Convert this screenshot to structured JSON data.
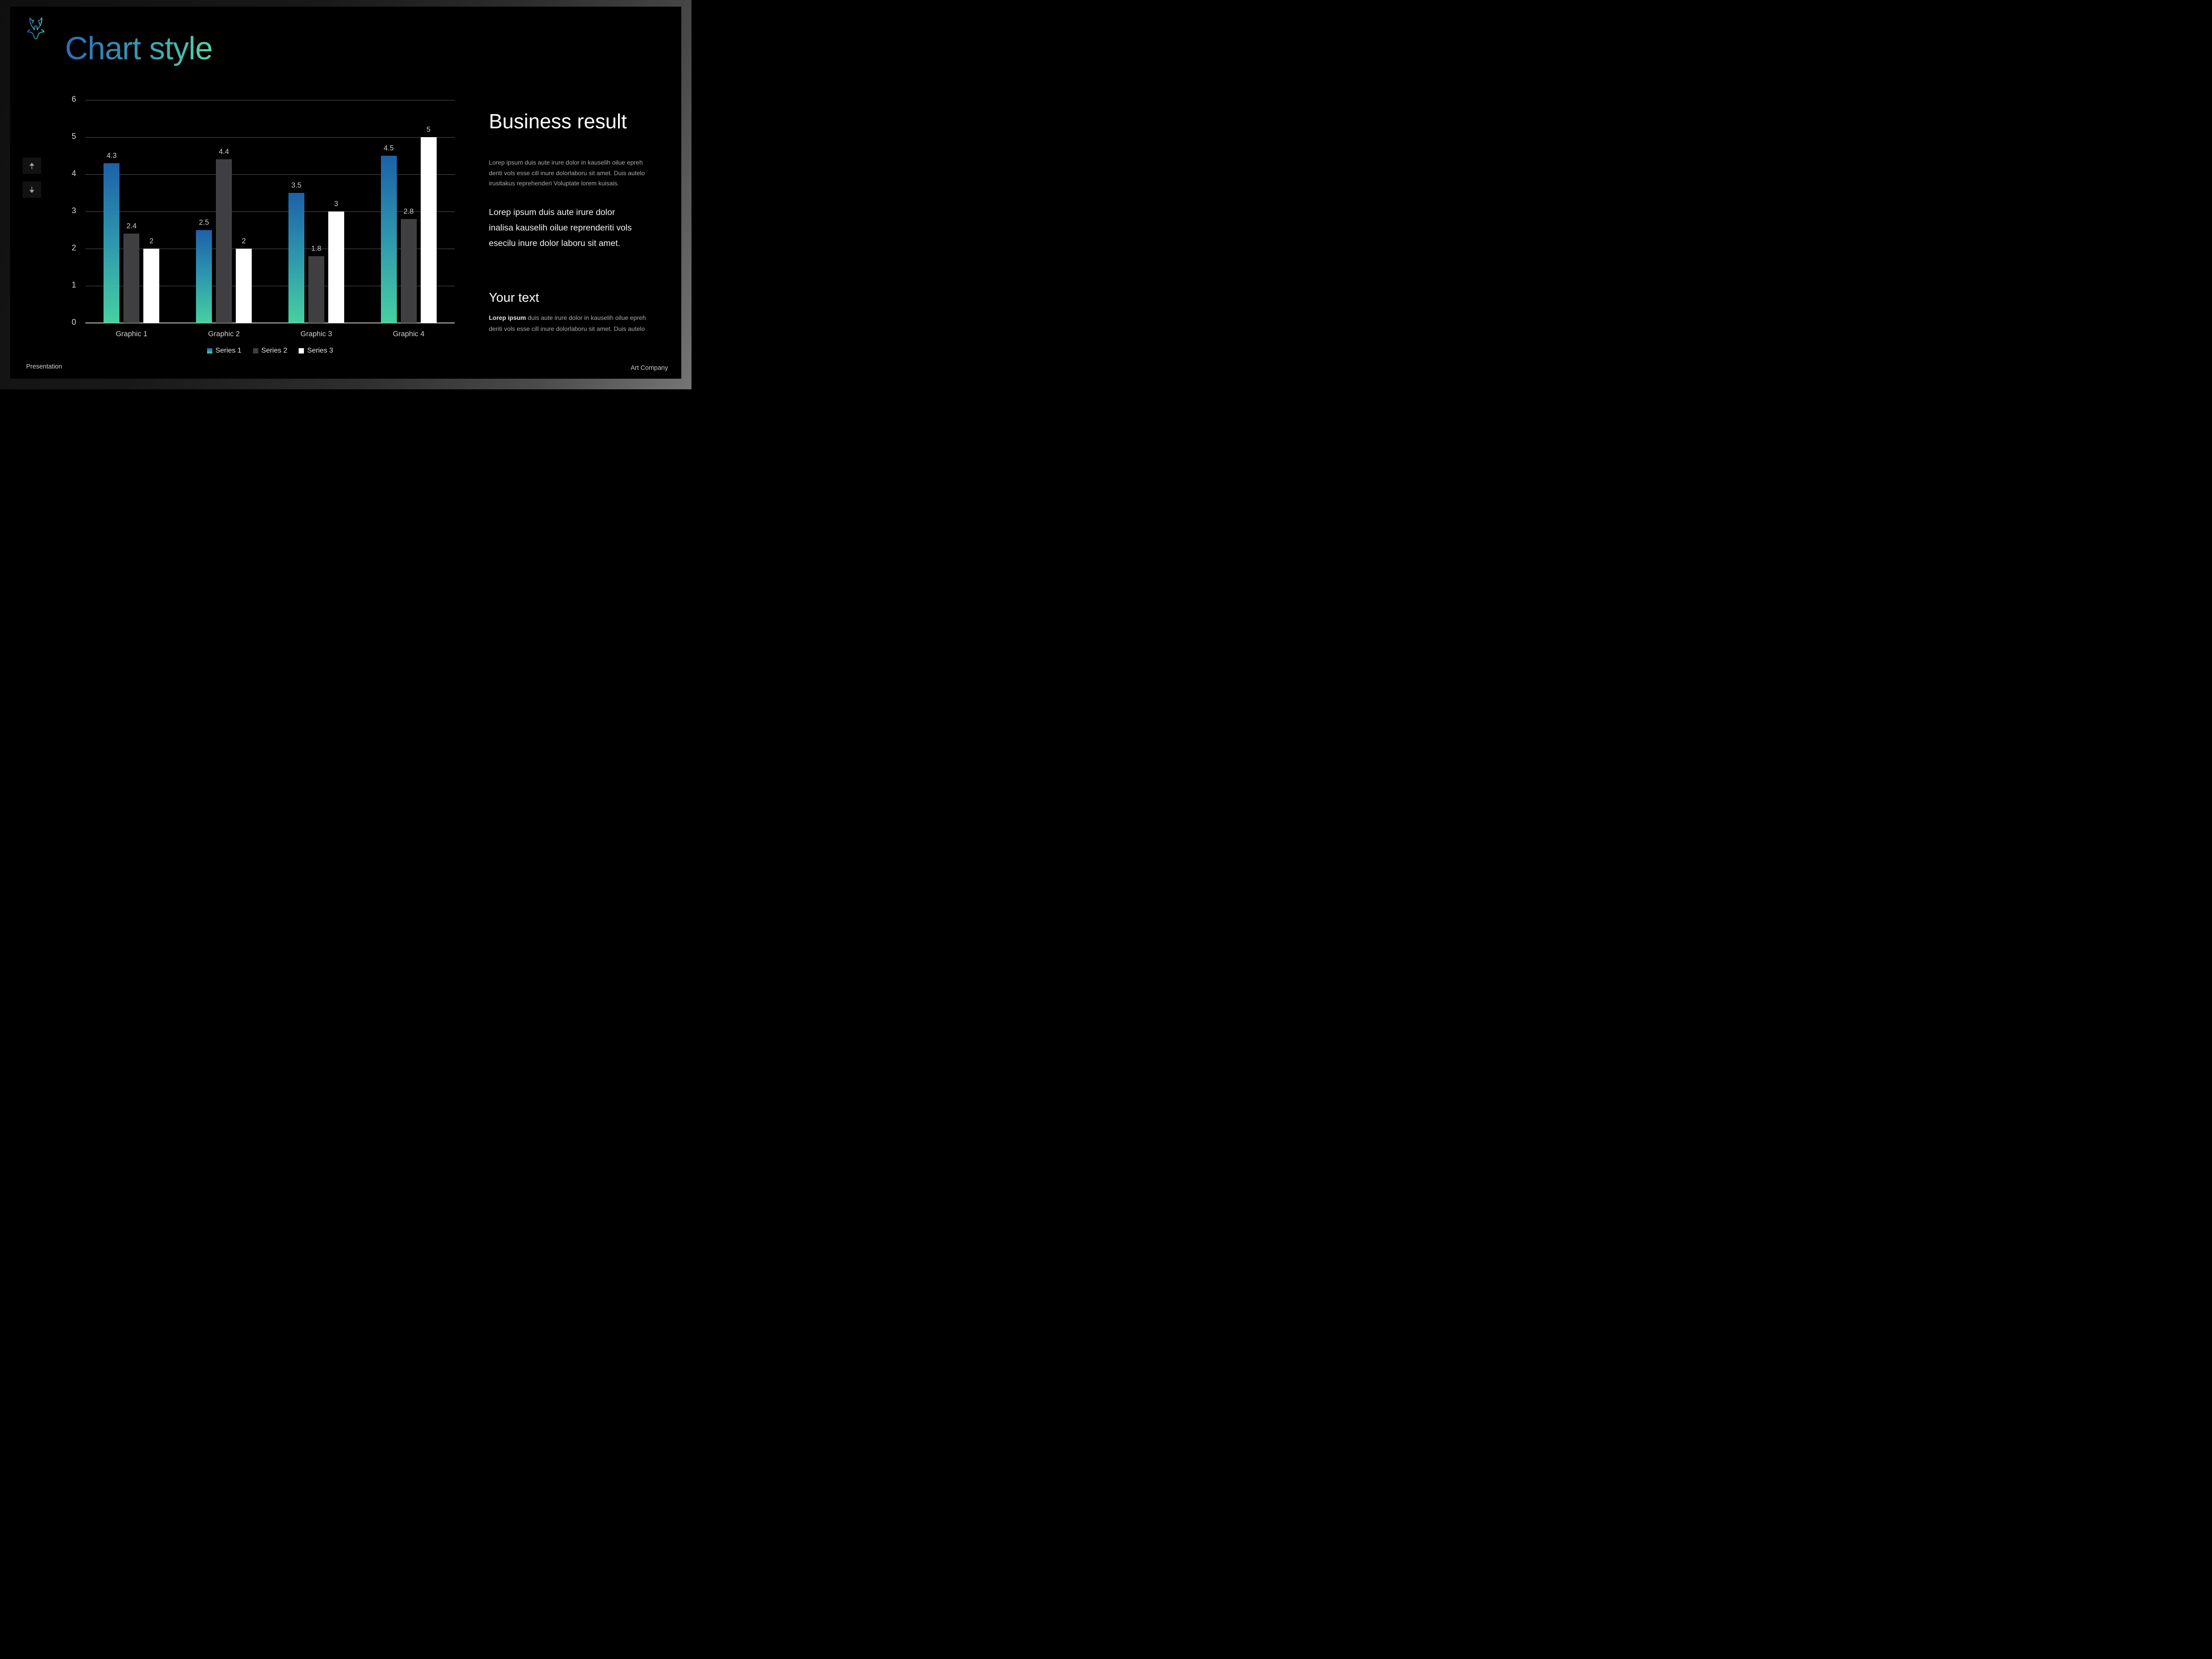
{
  "slide": {
    "title": "Chart style",
    "footer_left": "Presentation",
    "footer_right": "Art Company"
  },
  "icons": {
    "logo": "deer-stag-outline",
    "menu": "hamburger-two-bars",
    "nav_up": "arrow-up",
    "nav_down": "arrow-down"
  },
  "colors": {
    "slide_bg": "#000000",
    "accent_gradient_start": "#2d6db6",
    "accent_gradient_end": "#52d8a6",
    "series1_bar_top": "#1d61a8",
    "series1_bar_bottom": "#47d0a1",
    "series2_bar": "#3f3f41",
    "series3_bar": "#ffffff",
    "gridline": "#565656",
    "axis_line": "#c2c2c2"
  },
  "right_panel": {
    "heading": "Business result",
    "paragraph1": [
      "Lorep  ipsum duis aute irure dolor in kauselih oilue epreh",
      "deriti vols esse cill inure dolorlaboru sit amet. Duis autelo",
      "irusitakus reprehenderi Voluptate lorem kuisais."
    ],
    "paragraph2": [
      "Lorep  ipsum duis aute irure dolor",
      "inalisa kauselih oilue reprenderiti vols",
      "esecilu inure dolor laboru sit amet."
    ],
    "subheading": "Your text",
    "paragraph3_bold": "Lorep ipsum",
    "paragraph3_rest": [
      " duis aute irure dolor in kauselih oilue epreh",
      "deriti vols esse cill inure dolorlaboru sit amet. Duis autelo"
    ]
  },
  "chart_data": {
    "type": "bar",
    "title": "",
    "categories": [
      "Graphic 1",
      "Graphic 2",
      "Graphic 3",
      "Graphic 4"
    ],
    "series": [
      {
        "name": "Series 1",
        "values": [
          4.3,
          2.5,
          3.5,
          4.5
        ],
        "color": "accent-gradient"
      },
      {
        "name": "Series 2",
        "values": [
          2.4,
          4.4,
          1.8,
          2.8
        ],
        "color": "#3f3f41"
      },
      {
        "name": "Series 3",
        "values": [
          2,
          2,
          3,
          5
        ],
        "color": "#ffffff"
      }
    ],
    "ylim": [
      0,
      6
    ],
    "yticks": [
      0,
      1,
      2,
      3,
      4,
      5,
      6
    ],
    "xlabel": "",
    "ylabel": "",
    "grid": "horizontal-only",
    "legend_position": "bottom-center",
    "data_labels": true
  }
}
